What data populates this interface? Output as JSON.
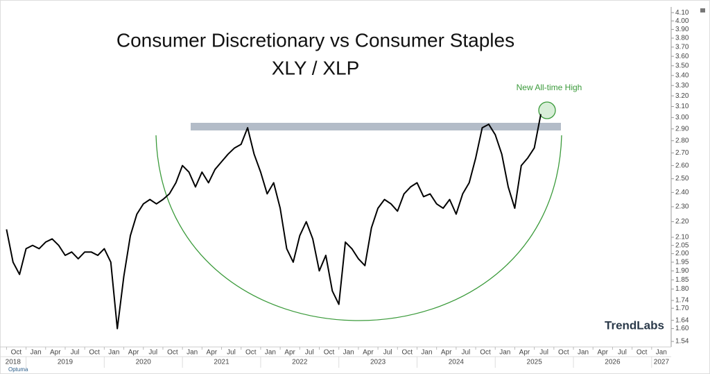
{
  "chart_data": {
    "type": "line",
    "title": "Consumer Discretionary vs Consumer Staples",
    "subtitle": "XLY / XLP",
    "annotation": "New All-time High",
    "logo": "TrendLabs",
    "footer": "Optuma",
    "color": "#000000",
    "log_y": true,
    "x": [
      "2018-10",
      "2018-11",
      "2018-12",
      "2019-01",
      "2019-02",
      "2019-03",
      "2019-04",
      "2019-05",
      "2019-06",
      "2019-07",
      "2019-08",
      "2019-09",
      "2019-10",
      "2019-11",
      "2019-12",
      "2020-01",
      "2020-02",
      "2020-03",
      "2020-04",
      "2020-05",
      "2020-06",
      "2020-07",
      "2020-08",
      "2020-09",
      "2020-10",
      "2020-11",
      "2020-12",
      "2021-01",
      "2021-02",
      "2021-03",
      "2021-04",
      "2021-05",
      "2021-06",
      "2021-07",
      "2021-08",
      "2021-09",
      "2021-10",
      "2021-11",
      "2021-12",
      "2022-01",
      "2022-02",
      "2022-03",
      "2022-04",
      "2022-05",
      "2022-06",
      "2022-07",
      "2022-08",
      "2022-09",
      "2022-10",
      "2022-11",
      "2022-12",
      "2023-01",
      "2023-02",
      "2023-03",
      "2023-04",
      "2023-05",
      "2023-06",
      "2023-07",
      "2023-08",
      "2023-09",
      "2023-10",
      "2023-11",
      "2023-12",
      "2024-01",
      "2024-02",
      "2024-03",
      "2024-04",
      "2024-05",
      "2024-06",
      "2024-07",
      "2024-08",
      "2024-09",
      "2024-10",
      "2024-11",
      "2024-12",
      "2025-01",
      "2025-02",
      "2025-03",
      "2025-04",
      "2025-05",
      "2025-06",
      "2025-07",
      "2025-08"
    ],
    "values": [
      2.15,
      1.95,
      1.88,
      2.03,
      2.05,
      2.03,
      2.07,
      2.09,
      2.05,
      1.99,
      2.01,
      1.97,
      2.01,
      2.01,
      1.99,
      2.03,
      1.95,
      1.6,
      1.87,
      2.11,
      2.25,
      2.32,
      2.35,
      2.32,
      2.35,
      2.39,
      2.47,
      2.6,
      2.55,
      2.44,
      2.55,
      2.47,
      2.57,
      2.63,
      2.69,
      2.74,
      2.77,
      2.91,
      2.69,
      2.55,
      2.39,
      2.47,
      2.29,
      2.03,
      1.95,
      2.11,
      2.2,
      2.09,
      1.9,
      1.99,
      1.79,
      1.72,
      2.07,
      2.03,
      1.97,
      1.93,
      2.16,
      2.29,
      2.35,
      2.32,
      2.27,
      2.39,
      2.44,
      2.47,
      2.37,
      2.39,
      2.32,
      2.29,
      2.35,
      2.25,
      2.39,
      2.47,
      2.66,
      2.91,
      2.94,
      2.85,
      2.69,
      2.44,
      2.29,
      2.6,
      2.66,
      2.74,
      3.03
    ],
    "xlim": [
      "2018-09",
      "2027-04"
    ],
    "xticks": [
      {
        "value": "2018-10",
        "label": "Oct"
      },
      {
        "value": "2019-01",
        "label": "Jan"
      },
      {
        "value": "2019-04",
        "label": "Apr"
      },
      {
        "value": "2019-07",
        "label": "Jul"
      },
      {
        "value": "2019-10",
        "label": "Oct"
      },
      {
        "value": "2020-01",
        "label": "Jan"
      },
      {
        "value": "2020-04",
        "label": "Apr"
      },
      {
        "value": "2020-07",
        "label": "Jul"
      },
      {
        "value": "2020-10",
        "label": "Oct"
      },
      {
        "value": "2021-01",
        "label": "Jan"
      },
      {
        "value": "2021-04",
        "label": "Apr"
      },
      {
        "value": "2021-07",
        "label": "Jul"
      },
      {
        "value": "2021-10",
        "label": "Oct"
      },
      {
        "value": "2022-01",
        "label": "Jan"
      },
      {
        "value": "2022-04",
        "label": "Apr"
      },
      {
        "value": "2022-07",
        "label": "Jul"
      },
      {
        "value": "2022-10",
        "label": "Oct"
      },
      {
        "value": "2023-01",
        "label": "Jan"
      },
      {
        "value": "2023-04",
        "label": "Apr"
      },
      {
        "value": "2023-07",
        "label": "Jul"
      },
      {
        "value": "2023-10",
        "label": "Oct"
      },
      {
        "value": "2024-01",
        "label": "Jan"
      },
      {
        "value": "2024-04",
        "label": "Apr"
      },
      {
        "value": "2024-07",
        "label": "Jul"
      },
      {
        "value": "2024-10",
        "label": "Oct"
      },
      {
        "value": "2025-01",
        "label": "Jan"
      },
      {
        "value": "2025-04",
        "label": "Apr"
      },
      {
        "value": "2025-07",
        "label": "Jul"
      },
      {
        "value": "2025-10",
        "label": "Oct"
      },
      {
        "value": "2026-01",
        "label": "Jan"
      },
      {
        "value": "2026-04",
        "label": "Apr"
      },
      {
        "value": "2026-07",
        "label": "Jul"
      },
      {
        "value": "2026-10",
        "label": "Oct"
      },
      {
        "value": "2027-01",
        "label": "Jan"
      }
    ],
    "years": [
      "2018",
      "2019",
      "2020",
      "2021",
      "2022",
      "2023",
      "2024",
      "2025",
      "2026",
      "2027"
    ],
    "ylim": [
      1.515,
      4.17
    ],
    "yticks": [
      {
        "value": 4.1,
        "label": "4.10"
      },
      {
        "value": 4,
        "label": "4.00"
      },
      {
        "value": 3.9,
        "label": "3.90"
      },
      {
        "value": 3.8,
        "label": "3.80"
      },
      {
        "value": 3.7,
        "label": "3.70"
      },
      {
        "value": 3.6,
        "label": "3.60"
      },
      {
        "value": 3.5,
        "label": "3.50"
      },
      {
        "value": 3.4,
        "label": "3.40"
      },
      {
        "value": 3.3,
        "label": "3.30"
      },
      {
        "value": 3.2,
        "label": "3.20"
      },
      {
        "value": 3.1,
        "label": "3.10"
      },
      {
        "value": 3,
        "label": "3.00"
      },
      {
        "value": 2.9,
        "label": "2.90"
      },
      {
        "value": 2.8,
        "label": "2.80"
      },
      {
        "value": 2.7,
        "label": "2.70"
      },
      {
        "value": 2.6,
        "label": "2.60"
      },
      {
        "value": 2.5,
        "label": "2.50"
      },
      {
        "value": 2.4,
        "label": "2.40"
      },
      {
        "value": 2.3,
        "label": "2.30"
      },
      {
        "value": 2.2,
        "label": "2.20"
      },
      {
        "value": 2.1,
        "label": "2.10"
      },
      2.05,
      {
        "value": 2,
        "label": "2.00"
      },
      1.95,
      {
        "value": 1.9,
        "label": "1.90"
      },
      1.85,
      {
        "value": 1.8,
        "label": "1.80"
      },
      1.74,
      {
        "value": 1.7,
        "label": "1.70"
      },
      1.64,
      {
        "value": 1.6,
        "label": "1.60"
      },
      1.54
    ]
  }
}
